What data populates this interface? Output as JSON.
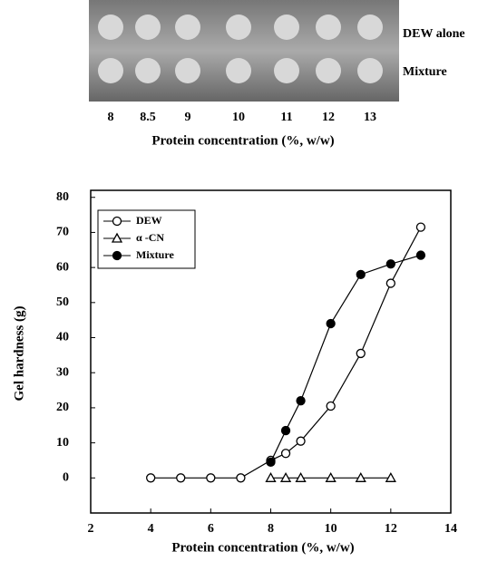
{
  "photo": {
    "row_labels": [
      "DEW alone",
      "Mixture"
    ],
    "column_labels": [
      "8",
      "8.5",
      "9",
      "10",
      "11",
      "12",
      "13"
    ],
    "caption": "Protein concentration (%, w/w)"
  },
  "chart_data": {
    "type": "line",
    "ylabel": "Gel hardness (g)",
    "xlabel": "Protein concentration (%, w/w)",
    "xlim": [
      2,
      14
    ],
    "xticks": [
      2,
      4,
      6,
      8,
      10,
      12,
      14
    ],
    "ylim": [
      -10,
      82
    ],
    "yticks": [
      0,
      10,
      20,
      30,
      40,
      50,
      60,
      70,
      80
    ],
    "legend": "upper left",
    "series": [
      {
        "name": "DEW",
        "color": "#000000",
        "marker": "circle-open",
        "x": [
          4,
          5,
          6,
          7,
          8,
          8.5,
          9,
          10,
          11,
          12,
          13
        ],
        "values": [
          0,
          0,
          0,
          0,
          5,
          7,
          10.5,
          20.5,
          35.5,
          55.5,
          71.5
        ]
      },
      {
        "name": "α -CN",
        "color": "#000000",
        "marker": "triangle-open",
        "x": [
          8,
          8.5,
          9,
          10,
          11,
          12
        ],
        "values": [
          0,
          0,
          0,
          0,
          0,
          0
        ]
      },
      {
        "name": "Mixture",
        "color": "#000000",
        "marker": "circle-filled",
        "x": [
          8,
          8.5,
          9,
          10,
          11,
          12,
          13
        ],
        "values": [
          4.5,
          13.5,
          22,
          44,
          58,
          61,
          63.5
        ]
      }
    ]
  }
}
